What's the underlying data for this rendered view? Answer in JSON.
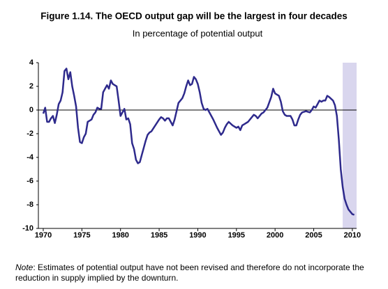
{
  "chart_data": {
    "type": "line",
    "title": "Figure 1.14. The OECD output gap will be the largest in four decades",
    "subtitle": "In percentage of potential output",
    "note": {
      "label": "Note",
      "text": ": Estimates of potential output have not been revised and therefore do not incorporate the reduction in supply implied by the downturn."
    },
    "x": [
      1970,
      1970.25,
      1970.5,
      1970.75,
      1971,
      1971.25,
      1971.5,
      1971.75,
      1972,
      1972.25,
      1972.5,
      1972.75,
      1973,
      1973.25,
      1973.5,
      1973.75,
      1974,
      1974.25,
      1974.5,
      1974.75,
      1975,
      1975.25,
      1975.5,
      1975.75,
      1976,
      1976.25,
      1976.5,
      1976.75,
      1977,
      1977.25,
      1977.5,
      1977.75,
      1978,
      1978.25,
      1978.5,
      1978.75,
      1979,
      1979.25,
      1979.5,
      1979.75,
      1980,
      1980.25,
      1980.5,
      1980.75,
      1981,
      1981.25,
      1981.5,
      1981.75,
      1982,
      1982.25,
      1982.5,
      1982.75,
      1983,
      1983.25,
      1983.5,
      1983.75,
      1984,
      1984.5,
      1985,
      1985.25,
      1985.5,
      1985.75,
      1986,
      1986.25,
      1986.5,
      1986.75,
      1987,
      1987.5,
      1988,
      1988.25,
      1988.5,
      1988.75,
      1989,
      1989.25,
      1989.5,
      1989.75,
      1990,
      1990.25,
      1990.5,
      1990.75,
      1991,
      1991.25,
      1991.5,
      1991.75,
      1992,
      1992.5,
      1993,
      1993.25,
      1993.5,
      1993.75,
      1994,
      1994.5,
      1995,
      1995.25,
      1995.5,
      1995.75,
      1996,
      1996.5,
      1997,
      1997.25,
      1997.5,
      1997.75,
      1998,
      1998.25,
      1998.5,
      1999,
      1999.5,
      1999.75,
      2000,
      2000.5,
      2000.75,
      2001,
      2001.25,
      2001.5,
      2002,
      2002.25,
      2002.5,
      2002.75,
      2003,
      2003.25,
      2003.5,
      2004,
      2004.5,
      2004.75,
      2005,
      2005.25,
      2005.5,
      2005.75,
      2006,
      2006.25,
      2006.5,
      2006.75,
      2007,
      2007.5,
      2007.75,
      2008,
      2008.25,
      2008.5,
      2008.75,
      2009,
      2009.25,
      2009.5,
      2009.75,
      2010,
      2010.25
    ],
    "series": [
      {
        "color": "#2e2a8c",
        "values": [
          -0.3,
          0.2,
          -1.0,
          -1.0,
          -0.7,
          -0.5,
          -1.1,
          -0.4,
          0.5,
          0.8,
          1.5,
          3.3,
          3.5,
          2.6,
          3.2,
          2.0,
          1.2,
          0.3,
          -1.5,
          -2.7,
          -2.8,
          -2.3,
          -2.0,
          -1.0,
          -0.9,
          -0.8,
          -0.4,
          -0.2,
          0.2,
          0.1,
          0.1,
          1.5,
          1.8,
          2.1,
          1.8,
          2.5,
          2.2,
          2.1,
          2.0,
          0.8,
          -0.5,
          -0.2,
          0.1,
          -0.8,
          -0.7,
          -1.2,
          -2.8,
          -3.3,
          -4.2,
          -4.5,
          -4.4,
          -3.8,
          -3.2,
          -2.6,
          -2.1,
          -1.9,
          -1.8,
          -1.3,
          -0.8,
          -0.6,
          -0.7,
          -0.9,
          -0.7,
          -0.7,
          -1.0,
          -1.3,
          -0.8,
          0.6,
          1.0,
          1.4,
          2.0,
          2.5,
          2.1,
          2.2,
          2.8,
          2.6,
          2.2,
          1.5,
          0.6,
          0.1,
          0.0,
          0.1,
          -0.2,
          -0.5,
          -0.8,
          -1.5,
          -2.1,
          -1.9,
          -1.5,
          -1.2,
          -1.0,
          -1.3,
          -1.5,
          -1.4,
          -1.7,
          -1.3,
          -1.2,
          -1.0,
          -0.6,
          -0.4,
          -0.5,
          -0.7,
          -0.5,
          -0.3,
          -0.2,
          0.2,
          1.1,
          1.8,
          1.4,
          1.2,
          0.7,
          -0.1,
          -0.4,
          -0.5,
          -0.5,
          -0.8,
          -1.3,
          -1.3,
          -0.8,
          -0.4,
          -0.2,
          -0.1,
          -0.2,
          0.0,
          0.3,
          0.2,
          0.5,
          0.8,
          0.7,
          0.8,
          0.8,
          1.2,
          1.1,
          0.8,
          0.4,
          -0.5,
          -2.5,
          -5.0,
          -6.5,
          -7.5,
          -8.0,
          -8.4,
          -8.6,
          -8.8,
          -8.85
        ]
      }
    ],
    "shaded_span": [
      2008.75,
      2010.55
    ],
    "shade_color": "#d9d6ee",
    "xlim": [
      1969.37,
      2010.55
    ],
    "xticks": [
      1970,
      1975,
      1980,
      1985,
      1990,
      1995,
      2000,
      2005,
      2010
    ],
    "ylim": [
      -10,
      4
    ],
    "yticks": [
      -10,
      -8,
      -6,
      -4,
      -2,
      0,
      2,
      4
    ],
    "zero_line": true
  }
}
